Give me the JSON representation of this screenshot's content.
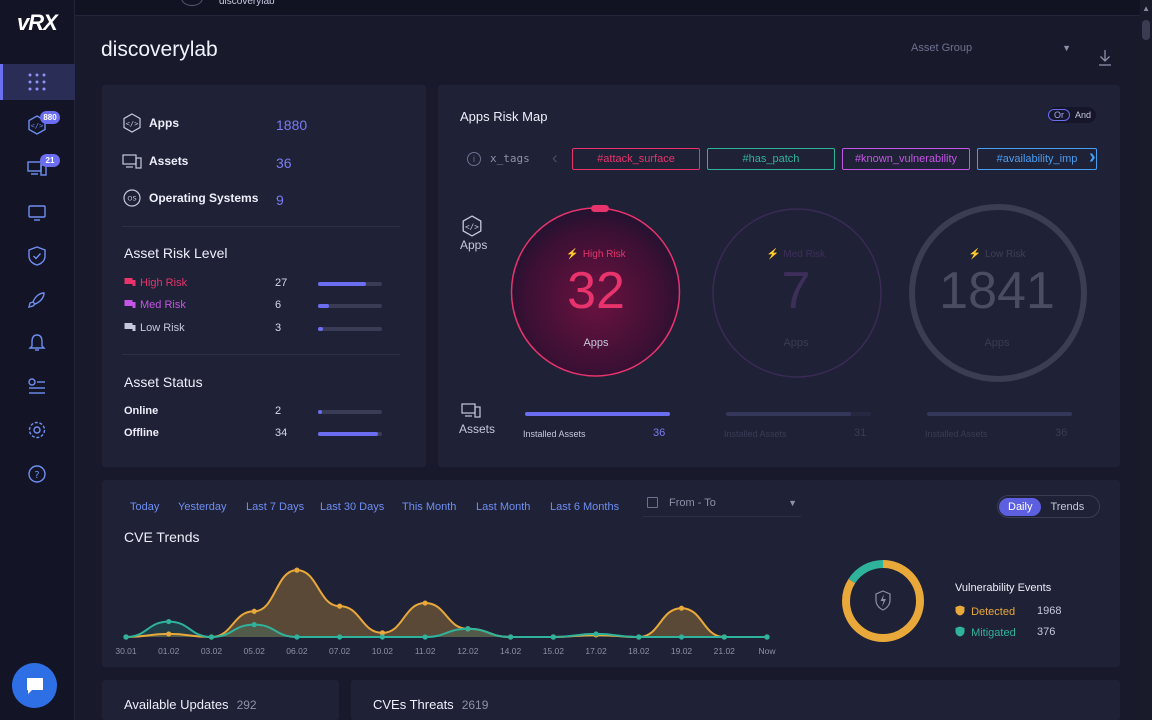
{
  "app": {
    "logo": "vRX",
    "user": "discoverylab"
  },
  "page": {
    "title": "discoverylab",
    "asset_group_placeholder": "Asset Group"
  },
  "sidebar": {
    "items": [
      {
        "icon": "dashboard-icon",
        "active": true
      },
      {
        "icon": "apps-icon",
        "badge": "880"
      },
      {
        "icon": "assets-icon",
        "badge": "21"
      },
      {
        "icon": "monitor-icon"
      },
      {
        "icon": "shield-icon"
      },
      {
        "icon": "rocket-icon"
      },
      {
        "icon": "bell-icon"
      },
      {
        "icon": "reports-icon"
      },
      {
        "icon": "settings-icon"
      },
      {
        "icon": "help-icon"
      }
    ]
  },
  "summary": {
    "apps_label": "Apps",
    "apps_value": "1880",
    "assets_label": "Assets",
    "assets_value": "36",
    "os_label": "Operating Systems",
    "os_value": "9",
    "os_icon_text": "OS"
  },
  "asset_risk": {
    "title": "Asset Risk Level",
    "rows": [
      {
        "label": "High Risk",
        "value": "27",
        "fraction": 0.75,
        "color": "#e8336c"
      },
      {
        "label": "Med Risk",
        "value": "6",
        "fraction": 0.17,
        "color": "#c455e6"
      },
      {
        "label": "Low Risk",
        "value": "3",
        "fraction": 0.08,
        "color": "#c6c8dd"
      }
    ]
  },
  "asset_status": {
    "title": "Asset Status",
    "rows": [
      {
        "label": "Online",
        "value": "2",
        "fraction": 0.06
      },
      {
        "label": "Offline",
        "value": "34",
        "fraction": 0.94
      }
    ]
  },
  "risk_map": {
    "title": "Apps Risk Map",
    "toggle": [
      "Or",
      "And"
    ],
    "tags_label": "x_tags",
    "tags": [
      {
        "label": "#attack_surface",
        "color": "#e8336c"
      },
      {
        "label": "#has_patch",
        "color": "#2fb39c"
      },
      {
        "label": "#known_vulnerability",
        "color": "#c455e6"
      },
      {
        "label": "#availability_imp",
        "color": "#4a9ef0"
      }
    ],
    "apps_row_label": "Apps",
    "assets_row_label": "Assets",
    "rings": [
      {
        "title": "High Risk",
        "value": "32",
        "sub": "Apps",
        "installed_label": "Installed Assets",
        "installed_count": "36",
        "installed_fraction": 1.0
      },
      {
        "title": "Med Risk",
        "value": "7",
        "sub": "Apps",
        "installed_label": "Installed Assets",
        "installed_count": "31",
        "installed_fraction": 0.86
      },
      {
        "title": "Low Risk",
        "value": "1841",
        "sub": "Apps",
        "installed_label": "Installed Assets",
        "installed_count": "36",
        "installed_fraction": 1.0
      }
    ]
  },
  "cve": {
    "filters": [
      "Today",
      "Yesterday",
      "Last 7 Days",
      "Last 30 Days",
      "This Month",
      "Last Month",
      "Last 6 Months"
    ],
    "date_range": "From - To",
    "views": [
      "Daily",
      "Trends"
    ],
    "title": "CVE Trends",
    "legend_title": "Vulnerability Events",
    "detected_label": "Detected",
    "detected_count": "1968",
    "mitigated_label": "Mitigated",
    "mitigated_count": "376"
  },
  "chart_data": {
    "type": "area",
    "categories": [
      "30.01",
      "01.02",
      "03.02",
      "05.02",
      "06.02",
      "07.02",
      "10.02",
      "11.02",
      "12.02",
      "14.02",
      "15.02",
      "17.02",
      "18.02",
      "19.02",
      "21.02",
      "Now"
    ],
    "series": [
      {
        "name": "Detected",
        "color": "#e9a93a",
        "values": [
          0,
          3,
          0,
          25,
          65,
          30,
          4,
          33,
          8,
          0,
          0,
          2,
          0,
          28,
          0,
          0
        ]
      },
      {
        "name": "Mitigated",
        "color": "#2fb39c",
        "values": [
          0,
          15,
          0,
          12,
          0,
          0,
          0,
          0,
          8,
          0,
          0,
          3,
          0,
          0,
          0,
          0
        ]
      }
    ],
    "ylim": [
      0,
      70
    ],
    "donut": {
      "detected": 1968,
      "mitigated": 376
    }
  },
  "bottom": {
    "updates_label": "Available Updates",
    "updates_count": "292",
    "threats_label": "CVEs Threats",
    "threats_count": "2619"
  }
}
